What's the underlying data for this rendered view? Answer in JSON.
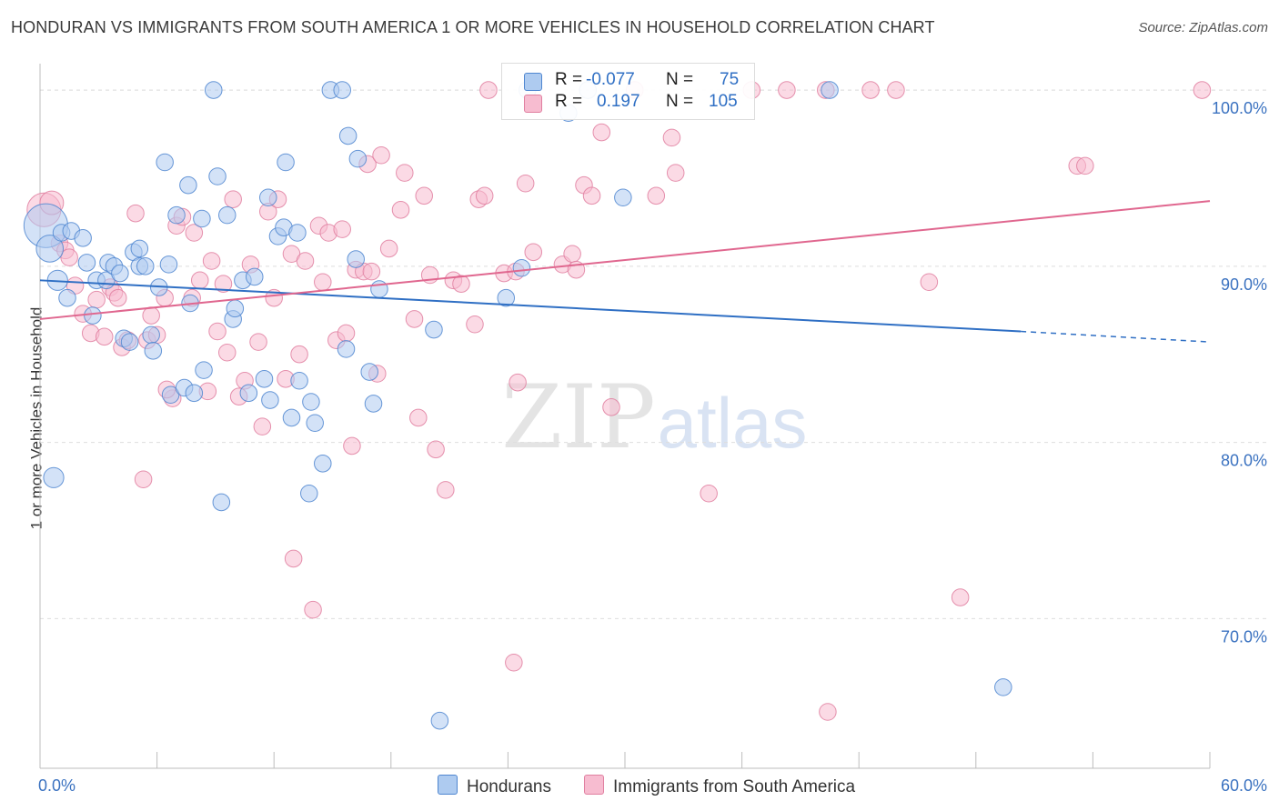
{
  "title": "HONDURAN VS IMMIGRANTS FROM SOUTH AMERICA 1 OR MORE VEHICLES IN HOUSEHOLD CORRELATION CHART",
  "source": "Source: ZipAtlas.com",
  "watermark": {
    "zip": "ZIP",
    "atlas": "atlas"
  },
  "legend": {
    "r_label": "R =",
    "n_label": "N =",
    "rows": [
      {
        "r": "-0.077",
        "n": "75",
        "color": "#aecbf0",
        "edge": "#4f86d0"
      },
      {
        "r": "0.197",
        "n": "105",
        "color": "#f7bcd0",
        "edge": "#e07fa0"
      }
    ]
  },
  "bottom_legend": [
    "Hondurans",
    "Immigrants from South America"
  ],
  "chart_data": {
    "type": "scatter",
    "title": "HONDURAN VS IMMIGRANTS FROM SOUTH AMERICA 1 OR MORE VEHICLES IN HOUSEHOLD CORRELATION CHART",
    "ylabel": "1 or more Vehicles in Household",
    "xlabel": "",
    "xlim": [
      0,
      60
    ],
    "ylim": [
      61.5,
      101.5
    ],
    "x_tick_labels": [
      "0.0%",
      "60.0%"
    ],
    "y_ticks": [
      70,
      80,
      90,
      100
    ],
    "y_tick_labels": [
      "70.0%",
      "80.0%",
      "90.0%",
      "100.0%"
    ],
    "grid": true,
    "legend_position": "top-center",
    "series": [
      {
        "name": "Hondurans",
        "color": "#4f86d0",
        "fill": "#aecbf0",
        "trend": {
          "x0": 0,
          "y0": 89.2,
          "x1": 50.3,
          "y1": 86.3,
          "dashed_to_x": 60,
          "dashed_to_y": 85.7
        },
        "points": [
          [
            0.3,
            92.3,
            26
          ],
          [
            0.5,
            91.0,
            16
          ],
          [
            0.9,
            89.2,
            12
          ],
          [
            1.1,
            91.9,
            10
          ],
          [
            1.4,
            88.2,
            10
          ],
          [
            1.6,
            92.0,
            10
          ],
          [
            2.2,
            91.6,
            10
          ],
          [
            2.4,
            90.2,
            10
          ],
          [
            2.7,
            87.2,
            10
          ],
          [
            2.9,
            89.2,
            10
          ],
          [
            3.4,
            89.2,
            10
          ],
          [
            3.5,
            90.2,
            10
          ],
          [
            3.8,
            90.0,
            10
          ],
          [
            4.1,
            89.6,
            10
          ],
          [
            4.3,
            85.9,
            10
          ],
          [
            4.6,
            85.7,
            10
          ],
          [
            4.8,
            90.8,
            10
          ],
          [
            5.1,
            90.0,
            10
          ],
          [
            5.1,
            91.0,
            10
          ],
          [
            5.4,
            90.0,
            10
          ],
          [
            5.7,
            86.1,
            10
          ],
          [
            5.8,
            85.2,
            10
          ],
          [
            6.1,
            88.8,
            10
          ],
          [
            6.4,
            95.9,
            10
          ],
          [
            6.6,
            90.1,
            10
          ],
          [
            6.7,
            82.7,
            10
          ],
          [
            7.0,
            92.9,
            10
          ],
          [
            7.4,
            83.1,
            10
          ],
          [
            7.6,
            94.6,
            10
          ],
          [
            7.7,
            87.9,
            10
          ],
          [
            7.9,
            82.8,
            10
          ],
          [
            8.3,
            92.7,
            10
          ],
          [
            8.4,
            84.1,
            10
          ],
          [
            8.9,
            100.0,
            10
          ],
          [
            9.1,
            95.1,
            10
          ],
          [
            9.3,
            76.6,
            10
          ],
          [
            9.6,
            92.9,
            10
          ],
          [
            9.9,
            87.0,
            10
          ],
          [
            10.0,
            87.6,
            10
          ],
          [
            10.4,
            89.2,
            10
          ],
          [
            10.7,
            82.8,
            10
          ],
          [
            11.0,
            89.4,
            10
          ],
          [
            11.5,
            83.6,
            10
          ],
          [
            11.7,
            93.9,
            10
          ],
          [
            11.8,
            82.4,
            10
          ],
          [
            12.2,
            91.7,
            10
          ],
          [
            12.5,
            92.2,
            10
          ],
          [
            12.6,
            95.9,
            10
          ],
          [
            12.9,
            81.4,
            10
          ],
          [
            13.2,
            91.9,
            10
          ],
          [
            13.3,
            83.5,
            10
          ],
          [
            13.8,
            77.1,
            10
          ],
          [
            13.9,
            82.3,
            10
          ],
          [
            14.1,
            81.1,
            10
          ],
          [
            14.5,
            78.8,
            10
          ],
          [
            14.9,
            100.0,
            10
          ],
          [
            15.5,
            100.0,
            10
          ],
          [
            15.7,
            85.3,
            10
          ],
          [
            15.8,
            97.4,
            10
          ],
          [
            16.2,
            90.4,
            10
          ],
          [
            16.3,
            96.1,
            10
          ],
          [
            16.9,
            84.0,
            10
          ],
          [
            17.1,
            82.2,
            10
          ],
          [
            17.4,
            88.7,
            10
          ],
          [
            20.2,
            86.4,
            10
          ],
          [
            20.5,
            64.2,
            10
          ],
          [
            23.9,
            88.2,
            10
          ],
          [
            24.7,
            89.9,
            10
          ],
          [
            25.0,
            100.0,
            10
          ],
          [
            27.1,
            98.7,
            10
          ],
          [
            28.1,
            100.0,
            10
          ],
          [
            29.9,
            93.9,
            10
          ],
          [
            40.5,
            100.0,
            10
          ],
          [
            49.4,
            66.1,
            10
          ],
          [
            0.7,
            78.0,
            12
          ]
        ]
      },
      {
        "name": "Immigrants from South America",
        "color": "#e07fa0",
        "fill": "#f7bcd0",
        "trend": {
          "x0": 0,
          "y0": 87.0,
          "x1": 60,
          "y1": 93.7
        },
        "points": [
          [
            0.2,
            93.2,
            20
          ],
          [
            0.6,
            93.6,
            14
          ],
          [
            1.0,
            91.3,
            10
          ],
          [
            1.3,
            90.9,
            10
          ],
          [
            1.5,
            90.5,
            10
          ],
          [
            1.8,
            88.9,
            10
          ],
          [
            2.2,
            87.3,
            10
          ],
          [
            2.6,
            86.2,
            10
          ],
          [
            2.9,
            88.1,
            10
          ],
          [
            3.3,
            86.0,
            10
          ],
          [
            3.6,
            88.8,
            10
          ],
          [
            3.8,
            88.5,
            10
          ],
          [
            4.0,
            88.2,
            10
          ],
          [
            4.2,
            85.4,
            10
          ],
          [
            4.5,
            85.8,
            10
          ],
          [
            4.9,
            93.0,
            10
          ],
          [
            5.3,
            77.9,
            10
          ],
          [
            5.5,
            85.8,
            10
          ],
          [
            5.7,
            87.2,
            10
          ],
          [
            6.0,
            86.1,
            10
          ],
          [
            6.4,
            88.2,
            10
          ],
          [
            6.8,
            82.5,
            10
          ],
          [
            7.0,
            92.3,
            10
          ],
          [
            7.3,
            92.8,
            10
          ],
          [
            7.8,
            88.2,
            10
          ],
          [
            7.9,
            91.9,
            10
          ],
          [
            8.2,
            89.2,
            10
          ],
          [
            8.6,
            82.9,
            10
          ],
          [
            8.8,
            90.3,
            10
          ],
          [
            9.1,
            86.3,
            10
          ],
          [
            9.4,
            89.0,
            10
          ],
          [
            9.6,
            85.1,
            10
          ],
          [
            9.9,
            93.8,
            10
          ],
          [
            10.2,
            82.6,
            10
          ],
          [
            10.5,
            83.5,
            10
          ],
          [
            10.8,
            90.1,
            10
          ],
          [
            11.2,
            85.7,
            10
          ],
          [
            11.4,
            80.9,
            10
          ],
          [
            11.7,
            93.1,
            10
          ],
          [
            12.0,
            88.2,
            10
          ],
          [
            12.2,
            93.8,
            10
          ],
          [
            12.6,
            83.6,
            10
          ],
          [
            12.9,
            90.7,
            10
          ],
          [
            13.0,
            73.4,
            10
          ],
          [
            13.3,
            85.0,
            10
          ],
          [
            13.6,
            90.3,
            10
          ],
          [
            14.0,
            70.5,
            10
          ],
          [
            14.3,
            92.3,
            10
          ],
          [
            14.5,
            89.1,
            10
          ],
          [
            14.8,
            91.9,
            10
          ],
          [
            15.2,
            85.8,
            10
          ],
          [
            15.5,
            92.1,
            10
          ],
          [
            15.7,
            86.2,
            10
          ],
          [
            16.0,
            79.8,
            10
          ],
          [
            16.2,
            89.8,
            10
          ],
          [
            16.6,
            89.7,
            10
          ],
          [
            16.8,
            95.8,
            10
          ],
          [
            17.0,
            89.7,
            10
          ],
          [
            17.3,
            83.9,
            10
          ],
          [
            17.5,
            96.3,
            10
          ],
          [
            17.9,
            91.0,
            10
          ],
          [
            18.5,
            93.2,
            10
          ],
          [
            18.7,
            95.3,
            10
          ],
          [
            19.2,
            87.0,
            10
          ],
          [
            19.4,
            81.4,
            10
          ],
          [
            19.7,
            94.0,
            10
          ],
          [
            20.0,
            89.5,
            10
          ],
          [
            20.3,
            79.6,
            10
          ],
          [
            20.8,
            77.3,
            10
          ],
          [
            21.2,
            89.2,
            10
          ],
          [
            21.6,
            89.0,
            10
          ],
          [
            22.3,
            86.7,
            10
          ],
          [
            22.5,
            93.8,
            10
          ],
          [
            22.8,
            94.0,
            10
          ],
          [
            23.0,
            100.0,
            10
          ],
          [
            23.8,
            89.6,
            10
          ],
          [
            24.3,
            67.5,
            10
          ],
          [
            24.5,
            83.4,
            10
          ],
          [
            24.9,
            94.7,
            10
          ],
          [
            25.3,
            90.8,
            10
          ],
          [
            26.8,
            90.1,
            10
          ],
          [
            27.3,
            90.7,
            10
          ],
          [
            27.5,
            89.8,
            10
          ],
          [
            27.9,
            94.6,
            10
          ],
          [
            28.3,
            94.0,
            10
          ],
          [
            28.8,
            97.6,
            10
          ],
          [
            29.3,
            82.0,
            10
          ],
          [
            30.5,
            100.0,
            10
          ],
          [
            31.6,
            94.0,
            10
          ],
          [
            32.4,
            97.3,
            10
          ],
          [
            32.6,
            95.3,
            10
          ],
          [
            34.3,
            77.1,
            10
          ],
          [
            36.5,
            100.0,
            10
          ],
          [
            38.3,
            100.0,
            10
          ],
          [
            40.3,
            100.0,
            10
          ],
          [
            40.4,
            64.7,
            10
          ],
          [
            42.6,
            100.0,
            10
          ],
          [
            43.9,
            100.0,
            10
          ],
          [
            45.6,
            89.1,
            10
          ],
          [
            47.2,
            71.2,
            10
          ],
          [
            53.2,
            95.7,
            10
          ],
          [
            53.6,
            95.7,
            10
          ],
          [
            59.6,
            100.0,
            10
          ],
          [
            24.4,
            89.7,
            10
          ],
          [
            6.5,
            83.0,
            10
          ]
        ]
      }
    ]
  }
}
